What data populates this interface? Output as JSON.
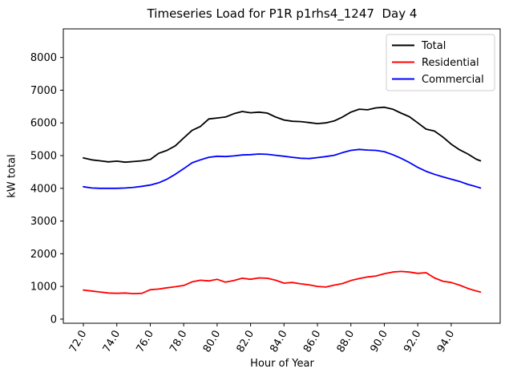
{
  "chart_data": {
    "type": "line",
    "title": "Timeseries Load for P1R p1rhs4_1247  Day 4",
    "xlabel": "Hour of Year",
    "ylabel": "kW total",
    "x": [
      72.0,
      72.5,
      73.0,
      73.5,
      74.0,
      74.5,
      75.0,
      75.5,
      76.0,
      76.5,
      77.0,
      77.5,
      78.0,
      78.5,
      79.0,
      79.5,
      80.0,
      80.5,
      81.0,
      81.5,
      82.0,
      82.5,
      83.0,
      83.5,
      84.0,
      84.5,
      85.0,
      85.5,
      86.0,
      86.5,
      87.0,
      87.5,
      88.0,
      88.5,
      89.0,
      89.5,
      90.0,
      90.5,
      91.0,
      91.5,
      92.0,
      92.5,
      93.0,
      93.5,
      94.0,
      94.5,
      95.0,
      95.5,
      95.75
    ],
    "series": [
      {
        "name": "Total",
        "color": "#000000",
        "values": [
          4930,
          4870,
          4840,
          4810,
          4830,
          4800,
          4820,
          4840,
          4880,
          5070,
          5160,
          5300,
          5540,
          5770,
          5890,
          6120,
          6150,
          6180,
          6280,
          6350,
          6310,
          6330,
          6300,
          6180,
          6090,
          6050,
          6040,
          6010,
          5980,
          6000,
          6060,
          6180,
          6330,
          6420,
          6400,
          6460,
          6480,
          6420,
          6300,
          6190,
          6000,
          5810,
          5750,
          5570,
          5350,
          5180,
          5050,
          4890,
          4840
        ]
      },
      {
        "name": "Residential",
        "color": "#ff0000",
        "values": [
          890,
          860,
          830,
          800,
          790,
          800,
          780,
          790,
          900,
          920,
          960,
          990,
          1030,
          1140,
          1190,
          1170,
          1220,
          1130,
          1180,
          1250,
          1220,
          1260,
          1250,
          1190,
          1100,
          1120,
          1080,
          1050,
          1000,
          980,
          1040,
          1090,
          1180,
          1240,
          1290,
          1320,
          1390,
          1440,
          1460,
          1440,
          1400,
          1420,
          1260,
          1160,
          1120,
          1040,
          940,
          860,
          830
        ]
      },
      {
        "name": "Commercial",
        "color": "#0000ff",
        "values": [
          4050,
          4010,
          4000,
          4000,
          4000,
          4010,
          4030,
          4060,
          4100,
          4170,
          4280,
          4430,
          4600,
          4780,
          4870,
          4950,
          4980,
          4970,
          4990,
          5020,
          5030,
          5050,
          5040,
          5010,
          4980,
          4950,
          4920,
          4910,
          4940,
          4970,
          5010,
          5090,
          5160,
          5190,
          5170,
          5160,
          5120,
          5030,
          4920,
          4790,
          4640,
          4520,
          4430,
          4350,
          4280,
          4210,
          4120,
          4050,
          4010
        ]
      }
    ],
    "xticks": {
      "values": [
        72,
        74,
        76,
        78,
        80,
        82,
        84,
        86,
        88,
        90,
        92,
        94
      ],
      "labels": [
        "72.0",
        "74.0",
        "76.0",
        "78.0",
        "80.0",
        "82.0",
        "84.0",
        "86.0",
        "88.0",
        "90.0",
        "92.0",
        "94.0"
      ],
      "rotation_deg": 60
    },
    "yticks": {
      "values": [
        0,
        1000,
        2000,
        3000,
        4000,
        5000,
        6000,
        7000,
        8000
      ],
      "labels": [
        "0",
        "1000",
        "2000",
        "3000",
        "4000",
        "5000",
        "6000",
        "7000",
        "8000"
      ]
    },
    "xlim": [
      70.8,
      96.93
    ],
    "ylim": [
      -125,
      8875
    ],
    "grid": false,
    "background": "#ffffff",
    "frame_color": "#000000",
    "legend": {
      "position": "upper-right",
      "border_color": "#cccccc",
      "entries": [
        {
          "label": "Total",
          "color": "#000000"
        },
        {
          "label": "Residential",
          "color": "#ff0000"
        },
        {
          "label": "Commercial",
          "color": "#0000ff"
        }
      ]
    }
  }
}
